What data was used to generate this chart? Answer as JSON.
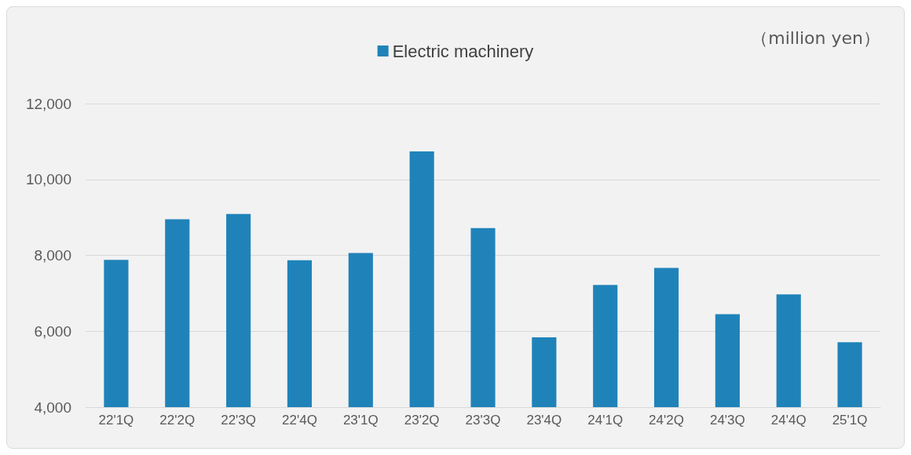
{
  "chart_data": {
    "type": "bar",
    "categories": [
      "22'1Q",
      "22'2Q",
      "22'3Q",
      "22'4Q",
      "23'1Q",
      "23'2Q",
      "23'3Q",
      "23'4Q",
      "24'1Q",
      "24'2Q",
      "24'3Q",
      "24'4Q",
      "25'1Q"
    ],
    "series": [
      {
        "name": "Electric machinery",
        "color": "#1f83b9",
        "values": [
          7880,
          8950,
          9090,
          7870,
          8060,
          10740,
          8720,
          5840,
          7220,
          7670,
          6450,
          6970,
          5710
        ]
      }
    ],
    "ylim": [
      4000,
      12000
    ],
    "yticks": [
      {
        "value": 4000,
        "label": "4,000"
      },
      {
        "value": 6000,
        "label": "6,000"
      },
      {
        "value": 8000,
        "label": "8,000"
      },
      {
        "value": 10000,
        "label": "10,000"
      },
      {
        "value": 12000,
        "label": "12,000"
      }
    ],
    "annotations": [
      "（million yen）"
    ],
    "grid": "y",
    "legend": "top"
  }
}
